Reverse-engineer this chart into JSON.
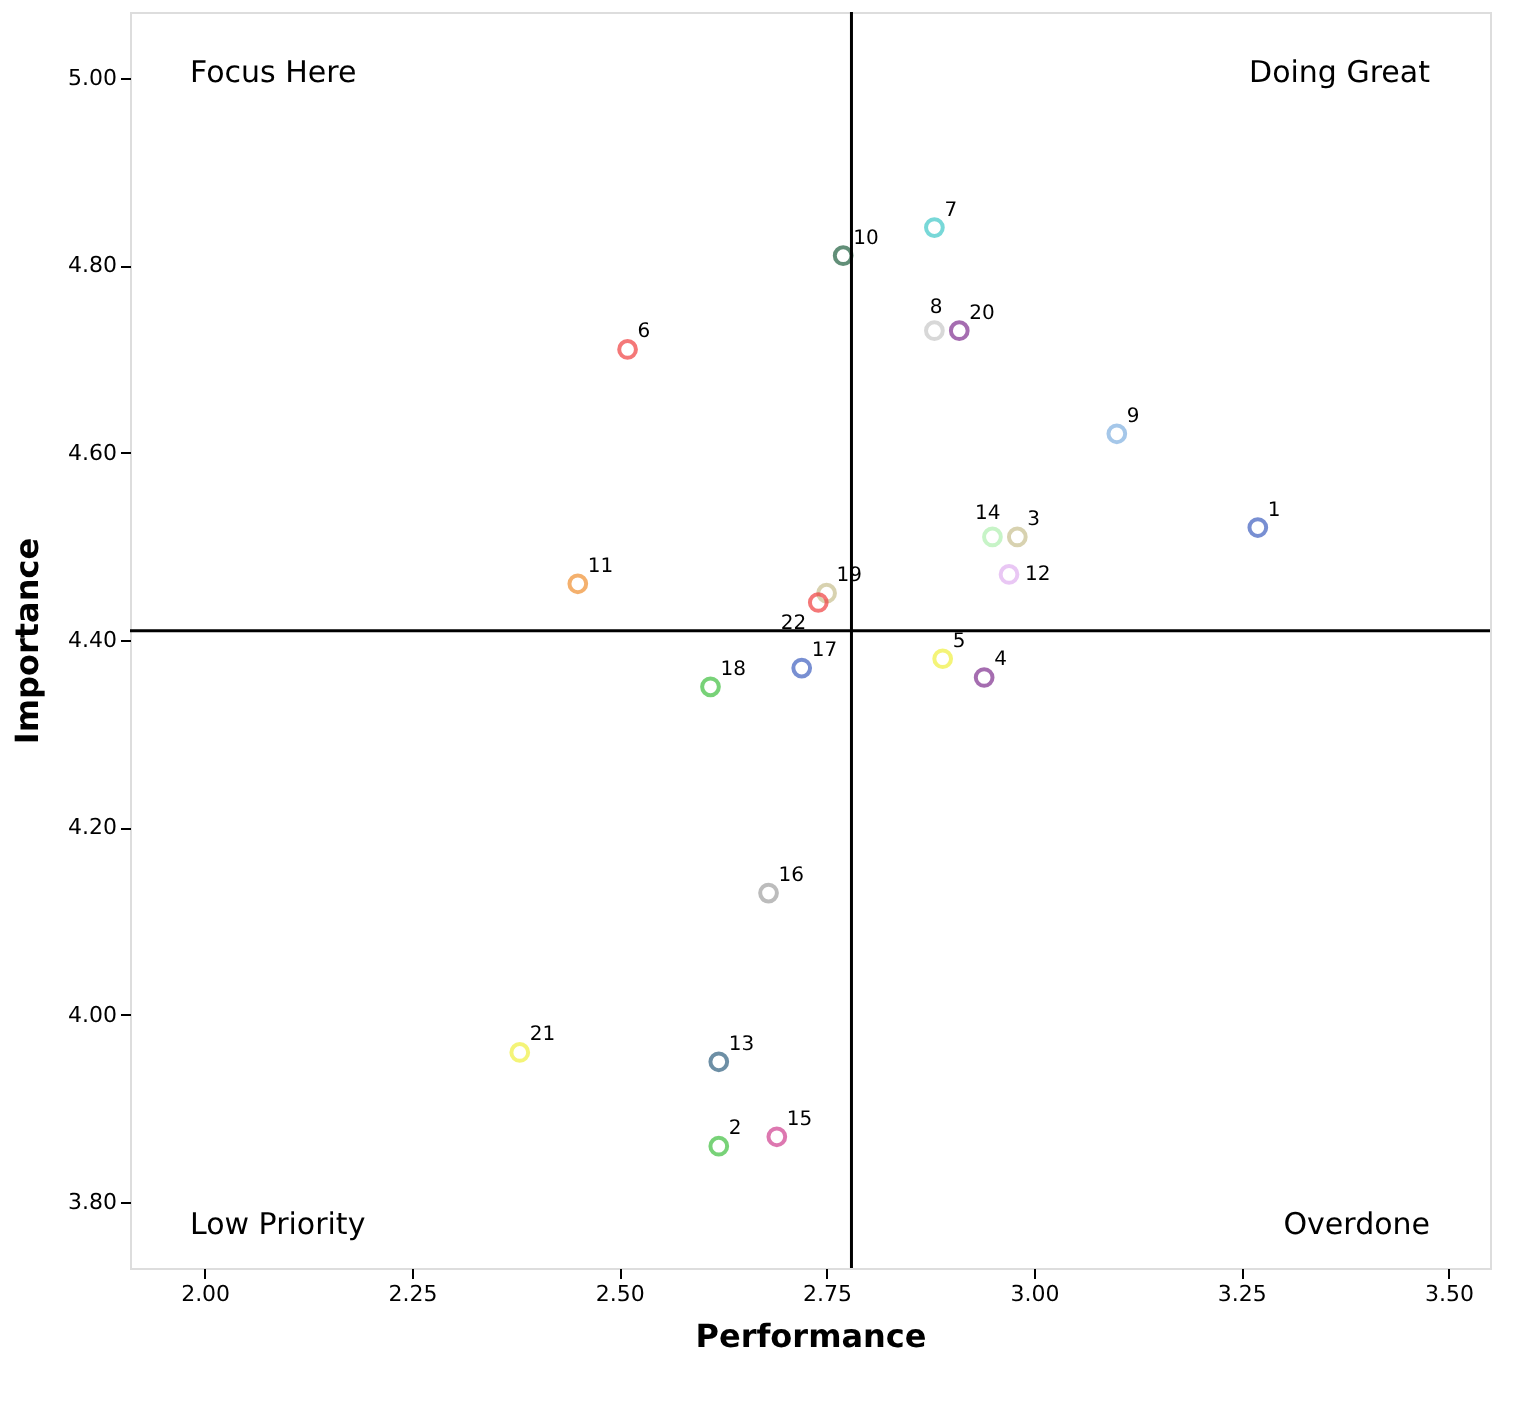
{
  "chart_data": {
    "type": "scatter",
    "xlabel": "Performance",
    "ylabel": "Importance",
    "xlim": [
      1.91,
      3.55
    ],
    "ylim": [
      3.73,
      5.07
    ],
    "xticks": [
      {
        "value": 2.0,
        "label": "2.00"
      },
      2.25,
      {
        "value": 2.5,
        "label": "2.50"
      },
      2.75,
      {
        "value": 3.0,
        "label": "3.00"
      },
      3.25,
      {
        "value": 3.5,
        "label": "3.50"
      }
    ],
    "yticks": [
      {
        "value": 3.8,
        "label": "3.80"
      },
      {
        "value": 4.0,
        "label": "4.00"
      },
      {
        "value": 4.2,
        "label": "4.20"
      },
      {
        "value": 4.4,
        "label": "4.40"
      },
      {
        "value": 4.6,
        "label": "4.60"
      },
      {
        "value": 4.8,
        "label": "4.80"
      },
      {
        "value": 5.0,
        "label": "5.00"
      }
    ],
    "grid": false,
    "legend": false,
    "marker": "circle",
    "ref_lines": [
      {
        "axis": "x",
        "value": 2.78,
        "color": "#000000"
      },
      {
        "axis": "y",
        "value": 4.41,
        "color": "#000000"
      }
    ],
    "annotations": [
      "Focus Here",
      "Doing Great",
      "Low Priority",
      "Overdone"
    ],
    "series": [
      {
        "name": "1",
        "color": "#4060c0",
        "x": [
          3.27
        ],
        "values": [
          4.52
        ]
      },
      {
        "name": "2",
        "color": "#40c040",
        "x": [
          2.62
        ],
        "values": [
          3.86
        ]
      },
      {
        "name": "3",
        "color": "#c8c090",
        "x": [
          2.98
        ],
        "values": [
          4.51
        ]
      },
      {
        "name": "4",
        "color": "#803090",
        "x": [
          2.94
        ],
        "values": [
          4.36
        ]
      },
      {
        "name": "5",
        "color": "#f0f040",
        "x": [
          2.89
        ],
        "values": [
          4.38
        ]
      },
      {
        "name": "6",
        "color": "#f04040",
        "x": [
          2.51
        ],
        "values": [
          4.71
        ]
      },
      {
        "name": "7",
        "color": "#40c8c8",
        "x": [
          2.88
        ],
        "values": [
          4.84
        ]
      },
      {
        "name": "8",
        "color": "#c8c8c8",
        "x": [
          2.88
        ],
        "values": [
          4.73
        ]
      },
      {
        "name": "9",
        "color": "#80b0e0",
        "x": [
          3.1
        ],
        "values": [
          4.62
        ]
      },
      {
        "name": "10",
        "color": "#206040",
        "x": [
          2.77
        ],
        "values": [
          4.81
        ]
      },
      {
        "name": "11",
        "color": "#f09030",
        "x": [
          2.45
        ],
        "values": [
          4.46
        ]
      },
      {
        "name": "12",
        "color": "#e0b0f0",
        "x": [
          2.97
        ],
        "values": [
          4.47
        ]
      },
      {
        "name": "13",
        "color": "#306080",
        "x": [
          2.62
        ],
        "values": [
          3.95
        ]
      },
      {
        "name": "14",
        "color": "#b0f0b0",
        "x": [
          2.95
        ],
        "values": [
          4.51
        ]
      },
      {
        "name": "15",
        "color": "#d04090",
        "x": [
          2.69
        ],
        "values": [
          3.87
        ]
      },
      {
        "name": "16",
        "color": "#a0a0a0",
        "x": [
          2.68
        ],
        "values": [
          4.13
        ]
      },
      {
        "name": "17",
        "color": "#4060c0",
        "x": [
          2.72
        ],
        "values": [
          4.37
        ]
      },
      {
        "name": "18",
        "color": "#40c040",
        "x": [
          2.61
        ],
        "values": [
          4.35
        ]
      },
      {
        "name": "19",
        "color": "#c8c090",
        "x": [
          2.75
        ],
        "values": [
          4.45
        ]
      },
      {
        "name": "20",
        "color": "#803090",
        "x": [
          2.91
        ],
        "values": [
          4.73
        ]
      },
      {
        "name": "21",
        "color": "#f0f040",
        "x": [
          2.38
        ],
        "values": [
          3.96
        ]
      },
      {
        "name": "22",
        "color": "#f04040",
        "x": [
          2.74
        ],
        "values": [
          4.44
        ]
      }
    ]
  }
}
